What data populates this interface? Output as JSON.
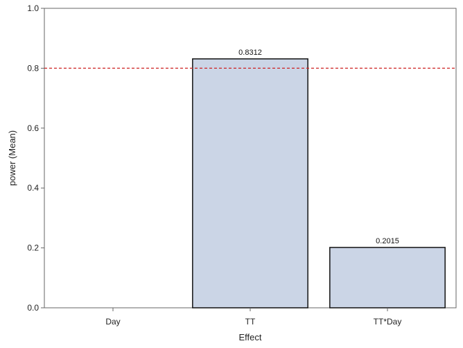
{
  "chart_data": {
    "type": "bar",
    "title": "",
    "xlabel": "Effect",
    "ylabel": "power (Mean)",
    "categories": [
      "Day",
      "TT",
      "TT*Day"
    ],
    "values": [
      0,
      0.8312,
      0.2015
    ],
    "data_labels": [
      "",
      "0.8312",
      "0.2015"
    ],
    "ylim": [
      0,
      1.0
    ],
    "yticks": [
      "0.0",
      "0.2",
      "0.4",
      "0.6",
      "0.8",
      "1.0"
    ],
    "reference_line": {
      "value": 0.8,
      "style": "dashed",
      "color": "#cc2222"
    },
    "grid": false,
    "colors": {
      "bar_fill": "#cbd5e6",
      "bar_stroke": "#111111",
      "axis": "#666666"
    }
  }
}
